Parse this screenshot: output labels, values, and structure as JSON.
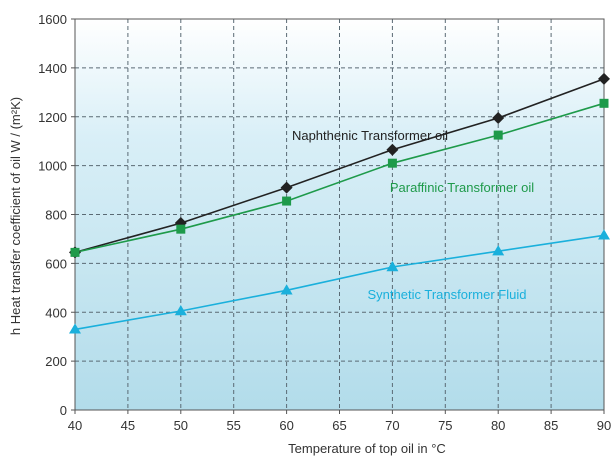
{
  "chart_data": {
    "type": "line",
    "title": "",
    "xlabel": "Temperature of top oil in °C",
    "ylabel": "h Heat transfer coefficient of oil W / (m²K)",
    "xlim": [
      40,
      90
    ],
    "ylim": [
      0,
      1600
    ],
    "x_ticks": [
      "40",
      "45",
      "50",
      "55",
      "60",
      "65",
      "70",
      "75",
      "80",
      "85",
      "90"
    ],
    "y_ticks": [
      "0",
      "200",
      "400",
      "600",
      "800",
      "1000",
      "1200",
      "1400",
      "1600"
    ],
    "grid": true,
    "x": [
      40,
      50,
      60,
      70,
      80,
      90
    ],
    "series": [
      {
        "name": "Naphthenic Transformer oil",
        "values": [
          645,
          765,
          910,
          1065,
          1195,
          1355
        ],
        "color": "#222222",
        "marker": "diamond"
      },
      {
        "name": "Paraffinic Transformer oil",
        "values": [
          645,
          740,
          855,
          1010,
          1125,
          1255
        ],
        "color": "#1e9a4a",
        "marker": "square"
      },
      {
        "name": "Synthetic Transformer Fluid",
        "values": [
          330,
          405,
          490,
          585,
          650,
          715
        ],
        "color": "#1ab0dc",
        "marker": "triangle"
      }
    ]
  }
}
